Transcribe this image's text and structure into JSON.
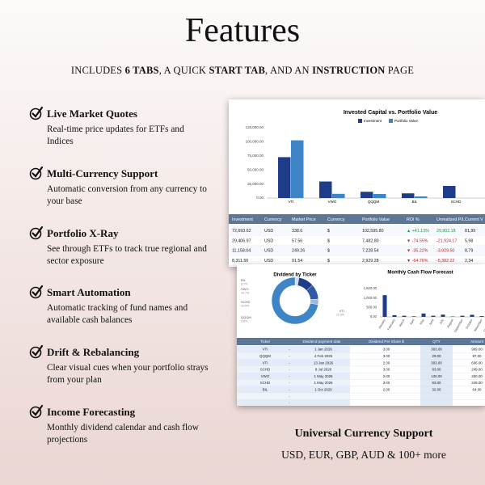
{
  "header": {
    "title": "Features",
    "subtitle": [
      {
        "text": "INCLUDES ",
        "bold": false
      },
      {
        "text": "6 TABS",
        "bold": true
      },
      {
        "text": ", A QUICK ",
        "bold": false
      },
      {
        "text": "START TAB",
        "bold": true
      },
      {
        "text": ", AND AN ",
        "bold": false
      },
      {
        "text": "INSTRUCTION",
        "bold": true
      },
      {
        "text": " PAGE",
        "bold": false
      }
    ]
  },
  "features": [
    {
      "title": "Live Market Quotes",
      "description": "Real-time price updates for ETFs and Indices"
    },
    {
      "title": "Multi-Currency Support",
      "description": "Automatic conversion from any currency to your base"
    },
    {
      "title": "Portfolio X-Ray",
      "description": "See through ETFs to track true regional and sector exposure"
    },
    {
      "title": "Smart Automation",
      "description": "Automatic tracking of fund names and available cash balances"
    },
    {
      "title": "Drift & Rebalancing",
      "description": "Clear visual cues when your portfolio strays from your plan"
    },
    {
      "title": "Income Forecasting",
      "description": "Monthly dividend calendar and cash flow projections"
    }
  ],
  "footer": {
    "title": "Universal Currency Support",
    "text": "USD, EUR, GBP, AUD & 100+ more"
  },
  "portfolio_screenshot": {
    "chart_data": {
      "type": "bar",
      "title": "Invested Capital vs. Portfolio Value",
      "categories": [
        "VTI",
        "VWO",
        "QQQM",
        "BIL",
        "SCHD"
      ],
      "series": [
        {
          "name": "Investment",
          "color": "#1f3c88",
          "values": [
            72693.62,
            29406.97,
            11158.04,
            8311.5,
            21500
          ]
        },
        {
          "name": "Portfolio Value",
          "color": "#3d85c6",
          "values": [
            102595.8,
            7482.8,
            7228.54,
            2929.28,
            null
          ]
        }
      ],
      "ylim": [
        0,
        125000
      ],
      "yticks": [
        {
          "value": 0,
          "label": "0.00"
        },
        {
          "value": 25000,
          "label": "25,000.00"
        },
        {
          "value": 50000,
          "label": "50,000.00"
        },
        {
          "value": 75000,
          "label": "75,000.00"
        },
        {
          "value": 100000,
          "label": "100,000.00"
        },
        {
          "value": 125000,
          "label": "125,000.00"
        }
      ],
      "grid": false
    },
    "table": {
      "columns": [
        "Investment",
        "Currency",
        "Market Price",
        "Currency",
        "Portfolio Value",
        "ROI %",
        "Unrealized P/L",
        "Current V"
      ],
      "rows": [
        [
          "72,693.62",
          "USD",
          "338.6",
          "$",
          "102,595.80",
          "▲ +41.13%",
          "29,902.18",
          "81,99"
        ],
        [
          "29,406.97",
          "USD",
          "57.56",
          "$",
          "7,482.80",
          "▼ -74.55%",
          "-21,924.17",
          "5,98"
        ],
        [
          "11,158.04",
          "USD",
          "249.26",
          "$",
          "7,228.54",
          "▼ -35.22%",
          "-3,929.50",
          "8,79"
        ],
        [
          "8,311.50",
          "USD",
          "91.54",
          "$",
          "2,929.28",
          "▼ -64.76%",
          "-5,382.22",
          "2,34"
        ]
      ]
    }
  },
  "dividend_screenshot": {
    "donut": {
      "chart_data": {
        "type": "donut",
        "title": "Dividend by Ticker",
        "categories": [
          "BIL",
          "VWO",
          "SCHD",
          "QQQM",
          "VTI"
        ],
        "values": [
          2.7,
          10.7,
          10.5,
          3.8,
          72.3
        ],
        "value_labels": [
          "2.7%",
          "10.7%",
          "10.5%",
          "3.8%",
          "72.3%"
        ],
        "colors": [
          "#cfdcee",
          "#1f3c88",
          "#2e5aa8",
          "#9fb8d9",
          "#3d85c6"
        ]
      }
    },
    "cash_flow": {
      "chart_data": {
        "type": "bar",
        "title": "Monthly Cash Flow Forecast",
        "categories": [
          "January",
          "February",
          "March",
          "April",
          "May",
          "June",
          "July",
          "August",
          "September",
          "October",
          "November",
          "December"
        ],
        "values": [
          1150,
          90,
          60,
          30,
          180,
          60,
          120,
          20,
          60,
          110,
          40,
          60
        ],
        "color": "#1f3c88",
        "ylim": [
          0,
          1500
        ],
        "yticks": [
          {
            "value": 0,
            "label": "0.00"
          },
          {
            "value": 500,
            "label": "500.00"
          },
          {
            "value": 1000,
            "label": "1,000.00"
          },
          {
            "value": 1500,
            "label": "1,500.00"
          }
        ]
      }
    },
    "table": {
      "columns": [
        "Ticker",
        "Dividend payment date",
        "Dividend Per Share $",
        "QTY",
        "Amount"
      ],
      "rows": [
        [
          "VTI",
          "-",
          "1 Jan 2026",
          "3.00",
          "303.00",
          "909.00"
        ],
        [
          "QQQM",
          "-",
          "4 Feb 2026",
          "3.00",
          "29.00",
          "87.00"
        ],
        [
          "VTI",
          "-",
          "13 Jan 2026",
          "2.00",
          "303.00",
          "606.00"
        ],
        [
          "SCHD",
          "-",
          "8 Jul 2026",
          "3.00",
          "83.00",
          "249.00"
        ],
        [
          "VWO",
          "-",
          "1 May 2026",
          "2.00",
          "130.00",
          "260.00"
        ],
        [
          "SCHD",
          "-",
          "1 May 2026",
          "3.00",
          "83.00",
          "249.00"
        ],
        [
          "BIL",
          "-",
          "1 Oct 2026",
          "2.00",
          "32.00",
          "64.00"
        ],
        [
          "",
          "-",
          "",
          "",
          "",
          ""
        ],
        [
          "",
          "-",
          "",
          "",
          "",
          ""
        ]
      ]
    }
  }
}
